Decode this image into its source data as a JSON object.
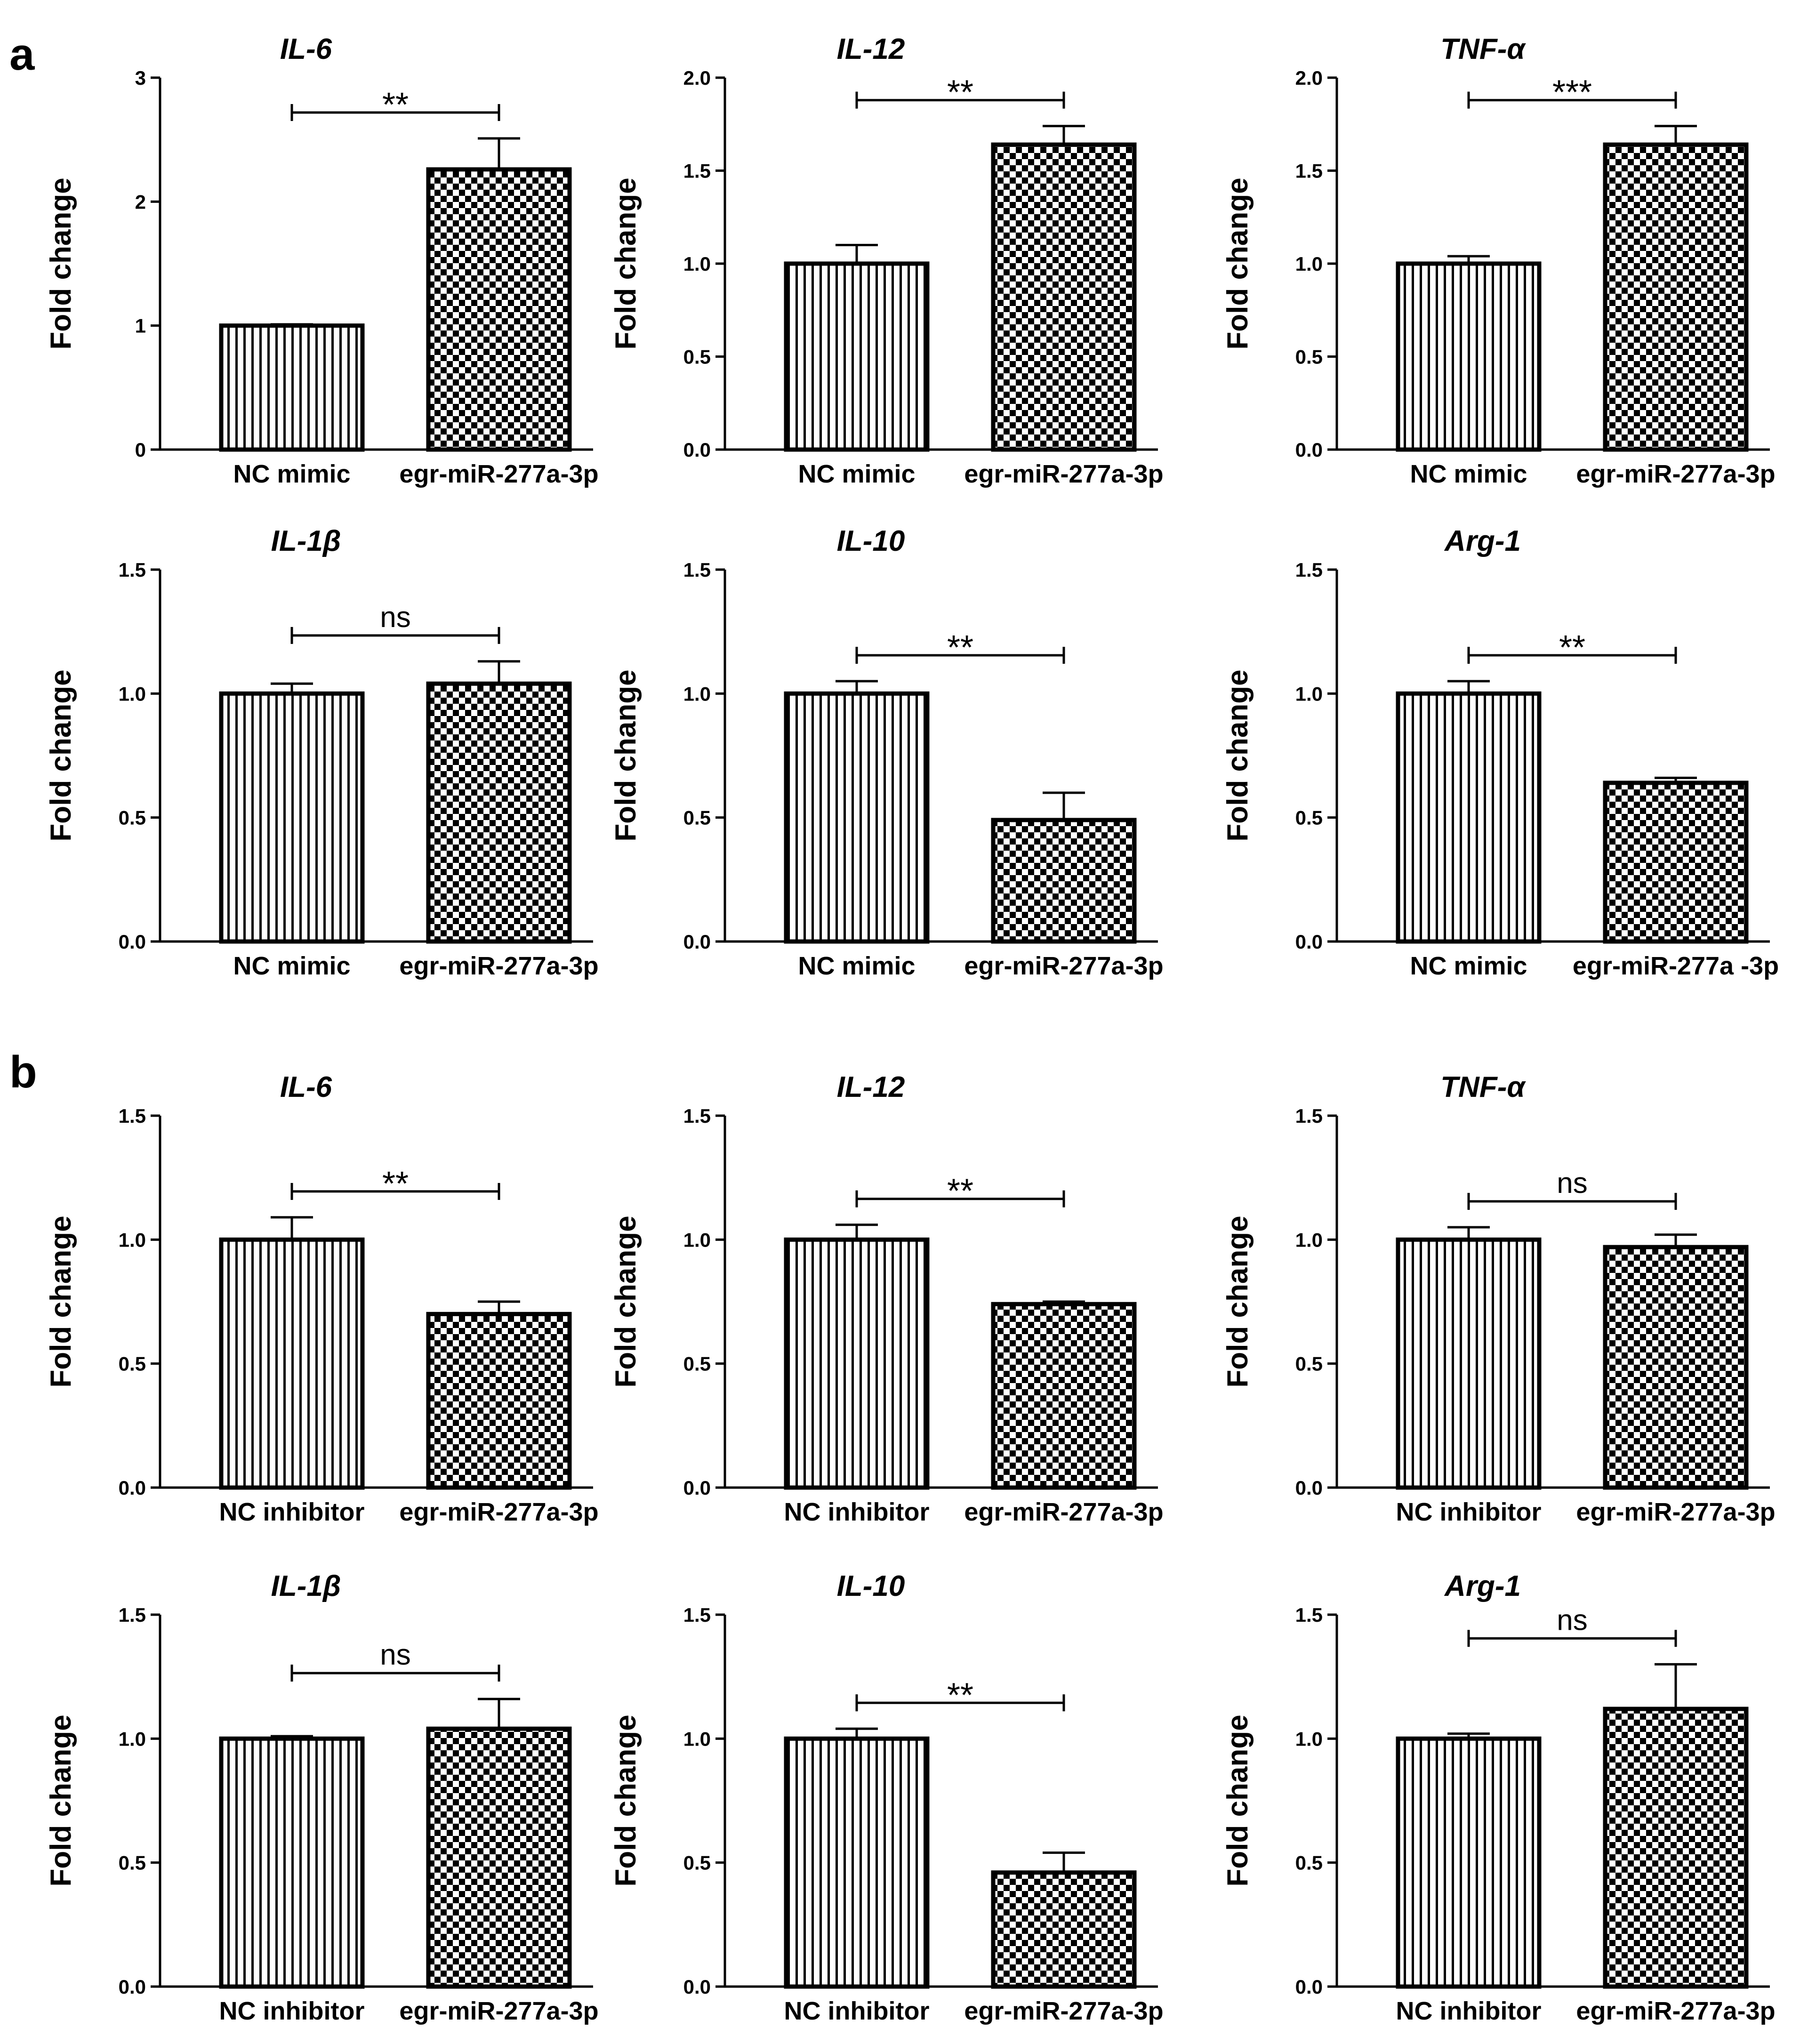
{
  "panel_labels": [
    "a",
    "b"
  ],
  "chart_data": [
    {
      "panel": "a",
      "type": "bar",
      "title": "IL-6",
      "ylabel": "Fold change",
      "ylim": [
        0,
        3
      ],
      "yticks": [
        "0",
        "1",
        "2",
        "3"
      ],
      "categories": [
        "NC mimic",
        "egr-miR-277a-3p"
      ],
      "values": [
        1.0,
        2.26
      ],
      "errors": [
        0.01,
        0.25
      ],
      "significance": "**"
    },
    {
      "panel": "a",
      "type": "bar",
      "title": "IL-12",
      "ylabel": "Fold change",
      "ylim": [
        0,
        2
      ],
      "yticks": [
        "0.0",
        "0.5",
        "1.0",
        "1.5",
        "2.0"
      ],
      "categories": [
        "NC mimic",
        "egr-miR-277a-3p"
      ],
      "values": [
        1.0,
        1.64
      ],
      "errors": [
        0.1,
        0.1
      ],
      "significance": "**"
    },
    {
      "panel": "a",
      "type": "bar",
      "title": "TNF-α",
      "ylabel": "Fold change",
      "ylim": [
        0,
        2
      ],
      "yticks": [
        "0.0",
        "0.5",
        "1.0",
        "1.5",
        "2.0"
      ],
      "categories": [
        "NC mimic",
        "egr-miR-277a-3p"
      ],
      "values": [
        1.0,
        1.64
      ],
      "errors": [
        0.04,
        0.1
      ],
      "significance": "***"
    },
    {
      "panel": "a",
      "type": "bar",
      "title": "IL-1β",
      "ylabel": "Fold change",
      "ylim": [
        0,
        1.5
      ],
      "yticks": [
        "0.0",
        "0.5",
        "1.0",
        "1.5"
      ],
      "categories": [
        "NC mimic",
        "egr-miR-277a-3p"
      ],
      "values": [
        1.0,
        1.04
      ],
      "errors": [
        0.04,
        0.09
      ],
      "significance": "ns"
    },
    {
      "panel": "a",
      "type": "bar",
      "title": "IL-10",
      "ylabel": "Fold change",
      "ylim": [
        0,
        1.5
      ],
      "yticks": [
        "0.0",
        "0.5",
        "1.0",
        "1.5"
      ],
      "categories": [
        "NC mimic",
        "egr-miR-277a-3p"
      ],
      "values": [
        1.0,
        0.49
      ],
      "errors": [
        0.05,
        0.11
      ],
      "significance": "**"
    },
    {
      "panel": "a",
      "type": "bar",
      "title": "Arg-1",
      "ylabel": "Fold change",
      "ylim": [
        0,
        1.5
      ],
      "yticks": [
        "0.0",
        "0.5",
        "1.0",
        "1.5"
      ],
      "categories": [
        "NC mimic",
        "egr-miR-277a -3p"
      ],
      "values": [
        1.0,
        0.64
      ],
      "errors": [
        0.05,
        0.02
      ],
      "significance": "**"
    },
    {
      "panel": "b",
      "type": "bar",
      "title": "IL-6",
      "ylabel": "Fold change",
      "ylim": [
        0,
        1.5
      ],
      "yticks": [
        "0.0",
        "0.5",
        "1.0",
        "1.5"
      ],
      "categories": [
        "NC inhibitor",
        "egr-miR-277a-3p"
      ],
      "values": [
        1.0,
        0.7
      ],
      "errors": [
        0.09,
        0.05
      ],
      "significance": "**"
    },
    {
      "panel": "b",
      "type": "bar",
      "title": "IL-12",
      "ylabel": "Fold change",
      "ylim": [
        0,
        1.5
      ],
      "yticks": [
        "0.0",
        "0.5",
        "1.0",
        "1.5"
      ],
      "categories": [
        "NC inhibitor",
        "egr-miR-277a-3p"
      ],
      "values": [
        1.0,
        0.74
      ],
      "errors": [
        0.06,
        0.01
      ],
      "significance": "**"
    },
    {
      "panel": "b",
      "type": "bar",
      "title": "TNF-α",
      "ylabel": "Fold change",
      "ylim": [
        0,
        1.5
      ],
      "yticks": [
        "0.0",
        "0.5",
        "1.0",
        "1.5"
      ],
      "categories": [
        "NC inhibitor",
        "egr-miR-277a-3p"
      ],
      "values": [
        1.0,
        0.97
      ],
      "errors": [
        0.05,
        0.05
      ],
      "significance": "ns"
    },
    {
      "panel": "b",
      "type": "bar",
      "title": "IL-1β",
      "ylabel": "Fold change",
      "ylim": [
        0,
        1.5
      ],
      "yticks": [
        "0.0",
        "0.5",
        "1.0",
        "1.5"
      ],
      "categories": [
        "NC inhibitor",
        "egr-miR-277a-3p"
      ],
      "values": [
        1.0,
        1.04
      ],
      "errors": [
        0.01,
        0.12
      ],
      "significance": "ns"
    },
    {
      "panel": "b",
      "type": "bar",
      "title": "IL-10",
      "ylabel": "Fold change",
      "ylim": [
        0,
        1.5
      ],
      "yticks": [
        "0.0",
        "0.5",
        "1.0",
        "1.5"
      ],
      "categories": [
        "NC inhibitor",
        "egr-miR-277a-3p"
      ],
      "values": [
        1.0,
        0.46
      ],
      "errors": [
        0.04,
        0.08
      ],
      "significance": "**"
    },
    {
      "panel": "b",
      "type": "bar",
      "title": "Arg-1",
      "ylabel": "Fold change",
      "ylim": [
        0,
        1.5
      ],
      "yticks": [
        "0.0",
        "0.5",
        "1.0",
        "1.5"
      ],
      "categories": [
        "NC inhibitor",
        "egr-miR-277a-3p"
      ],
      "values": [
        1.0,
        1.12
      ],
      "errors": [
        0.02,
        0.18
      ],
      "significance": "ns"
    }
  ]
}
